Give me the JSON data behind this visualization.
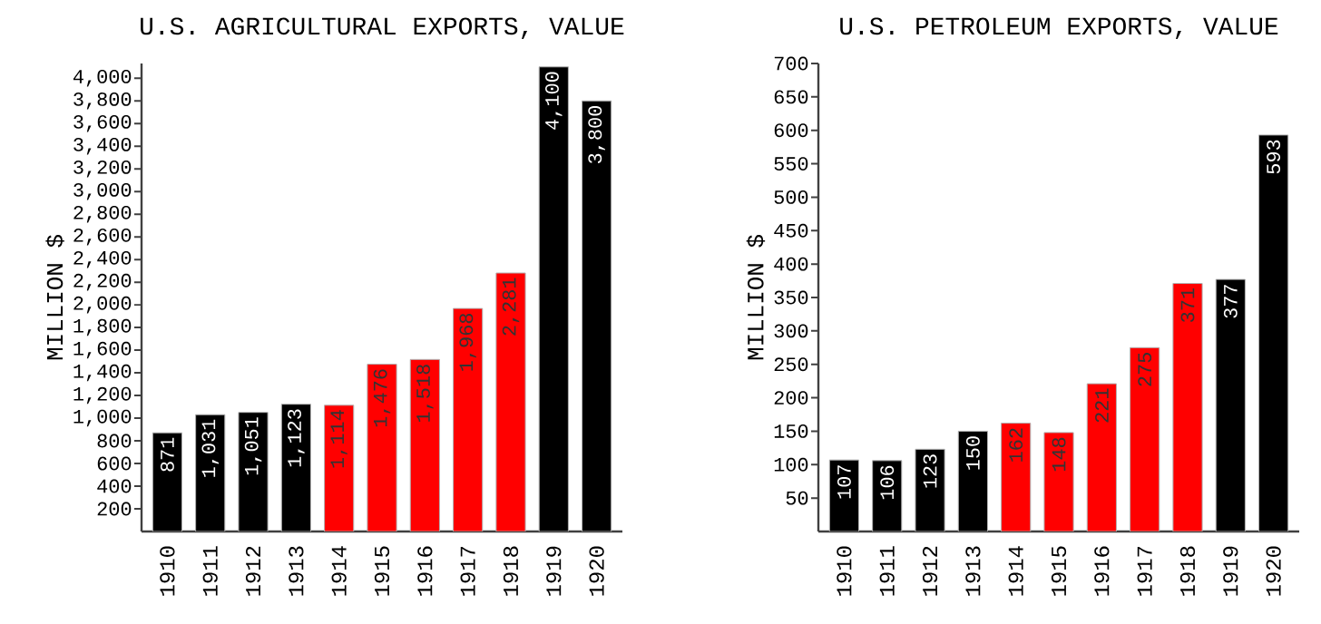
{
  "chart_data": [
    {
      "type": "bar",
      "title": "U.S. AGRICULTURAL EXPORTS, VALUE",
      "ylabel": "MILLION $",
      "categories": [
        "1910",
        "1911",
        "1912",
        "1913",
        "1914",
        "1915",
        "1916",
        "1917",
        "1918",
        "1919",
        "1920"
      ],
      "values": [
        871,
        1031,
        1051,
        1123,
        1114,
        1476,
        1518,
        1968,
        2281,
        4100,
        3800
      ],
      "value_labels": [
        "871",
        "1,031",
        "1,051",
        "1,123",
        "1,114",
        "1,476",
        "1,518",
        "1,968",
        "2,281",
        "4,100",
        "3,800"
      ],
      "colors": [
        "#000000",
        "#000000",
        "#000000",
        "#000000",
        "#ff0000",
        "#ff0000",
        "#ff0000",
        "#ff0000",
        "#ff0000",
        "#000000",
        "#000000"
      ],
      "ylim": [
        0,
        4130
      ],
      "yticks": [
        200,
        400,
        600,
        800,
        {
          "value": 1000,
          "label": "1,000"
        },
        {
          "value": 1200,
          "label": "1,200"
        },
        {
          "value": 1400,
          "label": "1,400"
        },
        {
          "value": 1600,
          "label": "1,600"
        },
        {
          "value": 1800,
          "label": "1,800"
        },
        {
          "value": 2000,
          "label": "2,000"
        },
        {
          "value": 2200,
          "label": "2,200"
        },
        {
          "value": 2400,
          "label": "2,400"
        },
        {
          "value": 2600,
          "label": "2,600"
        },
        {
          "value": 2800,
          "label": "2,800"
        },
        {
          "value": 3000,
          "label": "3,000"
        },
        {
          "value": 3200,
          "label": "3,200"
        },
        {
          "value": 3400,
          "label": "3,400"
        },
        {
          "value": 3600,
          "label": "3,600"
        },
        {
          "value": 3800,
          "label": "3,800"
        },
        {
          "value": 4000,
          "label": "4,000"
        }
      ]
    },
    {
      "type": "bar",
      "title": "U.S. PETROLEUM EXPORTS, VALUE",
      "ylabel": "MILLION $",
      "categories": [
        "1910",
        "1911",
        "1912",
        "1913",
        "1914",
        "1915",
        "1916",
        "1917",
        "1918",
        "1919",
        "1920"
      ],
      "values": [
        107,
        106,
        123,
        150,
        162,
        148,
        221,
        275,
        371,
        377,
        593
      ],
      "value_labels": [
        "107",
        "106",
        "123",
        "150",
        "162",
        "148",
        "221",
        "275",
        "371",
        "377",
        "593"
      ],
      "colors": [
        "#000000",
        "#000000",
        "#000000",
        "#000000",
        "#ff0000",
        "#ff0000",
        "#ff0000",
        "#ff0000",
        "#ff0000",
        "#000000",
        "#000000"
      ],
      "ylim": [
        0,
        700
      ],
      "yticks": [
        50,
        100,
        150,
        200,
        250,
        300,
        350,
        400,
        450,
        500,
        550,
        600,
        650,
        700
      ]
    }
  ]
}
